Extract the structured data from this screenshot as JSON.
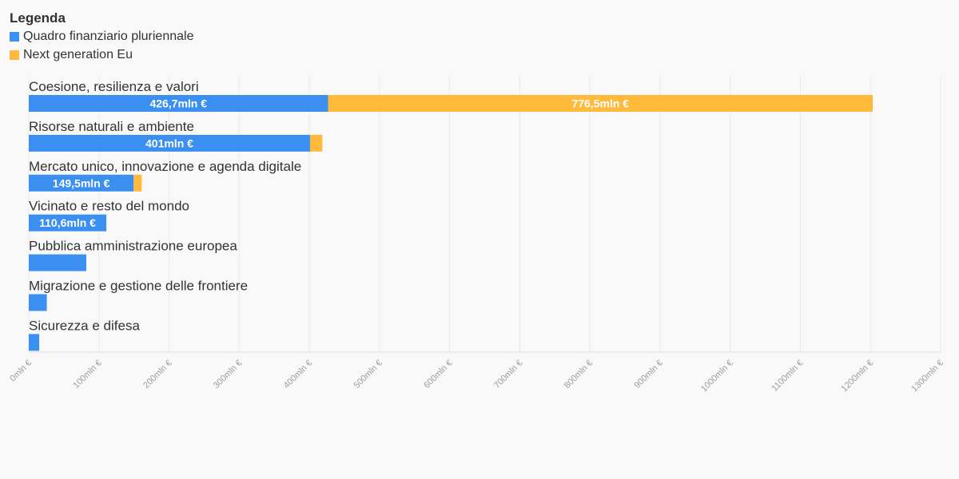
{
  "legend": {
    "title": "Legenda"
  },
  "colors": {
    "background": "#f9f9f9",
    "grid": "#ebebeb",
    "axis": "#dddddd"
  },
  "chart_data": {
    "type": "bar",
    "orientation": "horizontal",
    "stacked": true,
    "categories": [
      "Coesione, resilienza e valori",
      "Risorse naturali e ambiente",
      "Mercato unico, innovazione e agenda digitale",
      "Vicinato e resto del mondo",
      "Pubblica amministrazione europea",
      "Migrazione e gestione delle frontiere",
      "Sicurezza e difesa"
    ],
    "series": [
      {
        "name": "Quadro finanziario pluriennale",
        "color": "#3a8ff0",
        "values": [
          426.7,
          401,
          149.5,
          110.6,
          82,
          25.7,
          14.9
        ],
        "labels": [
          "426,7mln €",
          "401mln €",
          "149,5mln €",
          "110,6mln €",
          "",
          "",
          ""
        ]
      },
      {
        "name": "Next generation Eu",
        "color": "#ffb93b",
        "values": [
          776.5,
          17.5,
          11.5,
          0,
          0,
          0,
          0
        ],
        "labels": [
          "776,5mln €",
          "",
          "",
          "",
          "",
          "",
          ""
        ]
      }
    ],
    "xlim": [
      0,
      1300
    ],
    "xticks": [
      0,
      100,
      200,
      300,
      400,
      500,
      600,
      700,
      800,
      900,
      1000,
      1100,
      1200,
      1300
    ],
    "xtick_labels": [
      "0mln €",
      "100mln €",
      "200mln €",
      "300mln €",
      "400mln €",
      "500mln €",
      "600mln €",
      "700mln €",
      "800mln €",
      "900mln €",
      "1000mln €",
      "1100mln €",
      "1200mln €",
      "1300mln €"
    ],
    "xlabel": "",
    "ylabel": "",
    "grid": true,
    "legend_position": "top-left"
  }
}
